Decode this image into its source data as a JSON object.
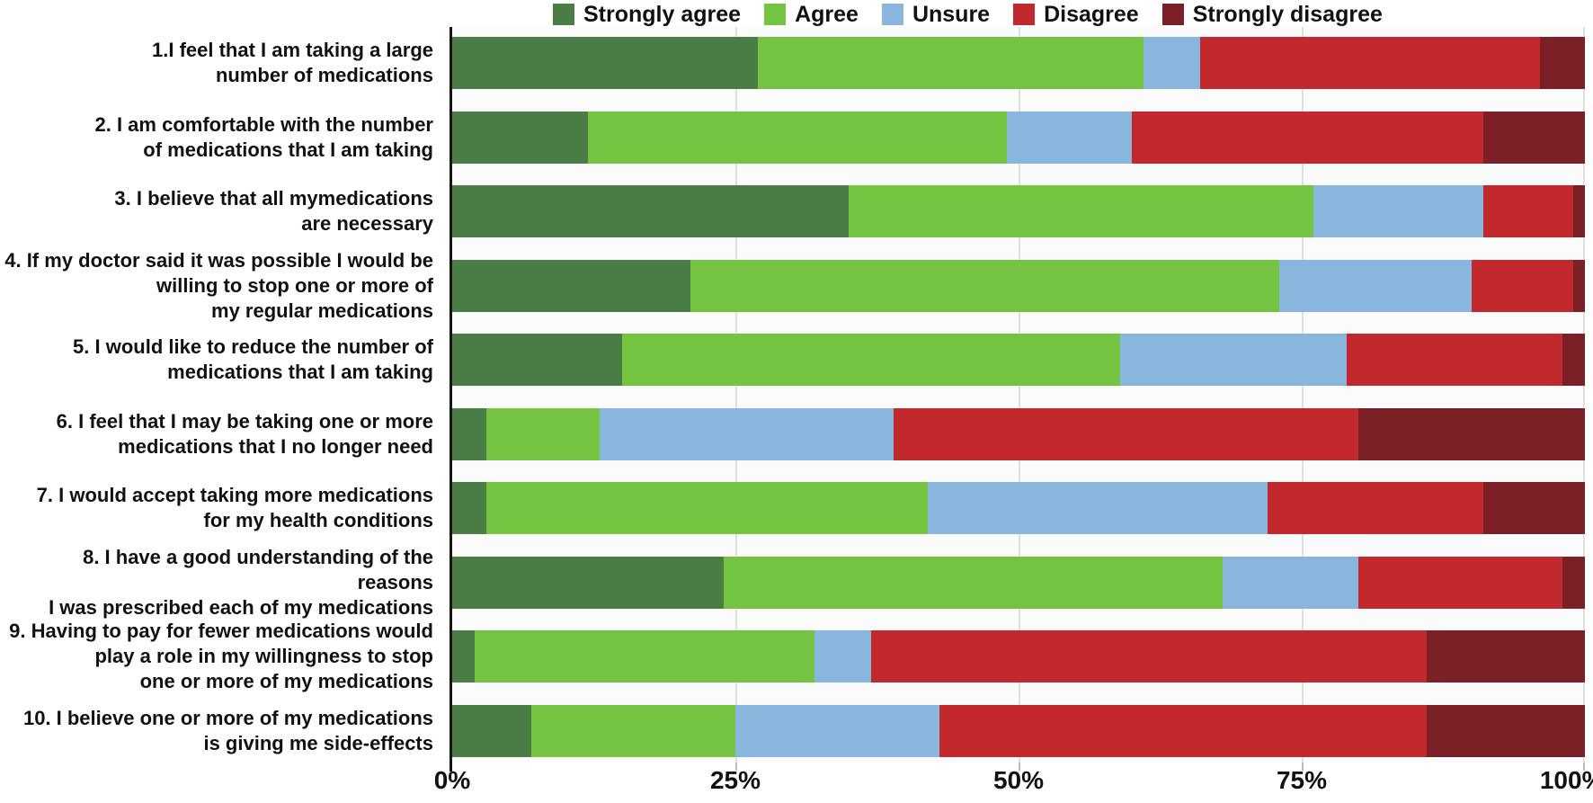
{
  "chart_data": {
    "type": "bar",
    "variant": "horizontal-stacked-100-percent",
    "title": "",
    "xlabel": "",
    "ylabel": "",
    "xlim": [
      0,
      100
    ],
    "x_ticks": [
      "0%",
      "25%",
      "50%",
      "75%",
      "100%"
    ],
    "x_tick_positions": [
      0,
      25,
      50,
      75,
      100
    ],
    "grid": "vertical light gridlines at 25%, 50%, 75%, 100%",
    "legend_position": "top-center",
    "categories": [
      "1.I feel that I am taking a large number of medications",
      "2. I am comfortable with the number of medications that I am taking",
      "3. I believe that all mymedications are necessary",
      "4. If my doctor said it was possible I would be willing to stop one or more of my regular medications",
      "5. I would like to reduce the number of medications that I am taking",
      "6. I feel that I may be taking one or more medications that I no longer need",
      "7. I would accept taking more medications for my health conditions",
      "8. I have a good understanding of the reasons I was prescribed each of my medications",
      "9. Having to pay for fewer medications would play a role in my willingness to stop one or more of my medications",
      "10. I believe one or more of my medications is giving me side-effects"
    ],
    "category_label_lines": [
      [
        "1.I feel that I am taking a large",
        "number of medications"
      ],
      [
        "2. I am comfortable with the number",
        "of medications that I am taking"
      ],
      [
        "3. I believe that all mymedications",
        "are necessary"
      ],
      [
        "4. If my doctor said it was possible I would be",
        "willing to stop one or more of",
        "my regular medications"
      ],
      [
        "5. I would like to reduce the number of",
        "medications that I am taking"
      ],
      [
        "6. I feel that I may be taking one or more",
        "medications that I no longer need"
      ],
      [
        "7. I would accept taking more medications",
        "for my health conditions"
      ],
      [
        "8. I have a good understanding of the reasons",
        "I was prescribed each of my medications"
      ],
      [
        "9. Having to pay for fewer medications would",
        "play a role in my willingness to stop",
        "one or more of my medications"
      ],
      [
        "10. I believe one or more of my medications",
        "is giving me side-effects"
      ]
    ],
    "series": [
      {
        "name": "Strongly agree",
        "color": "#4a7d45",
        "values": [
          27,
          12,
          35,
          21,
          15,
          3,
          3,
          24,
          2,
          7
        ]
      },
      {
        "name": "Agree",
        "color": "#74c341",
        "values": [
          34,
          37,
          41,
          52,
          44,
          10,
          39,
          44,
          30,
          18
        ]
      },
      {
        "name": "Unsure",
        "color": "#89b6dc",
        "values": [
          5,
          11,
          15,
          17,
          20,
          26,
          30,
          12,
          5,
          18
        ]
      },
      {
        "name": "Disagree",
        "color": "#c2292c",
        "values": [
          30,
          31,
          8,
          9,
          19,
          41,
          19,
          18,
          49,
          43
        ]
      },
      {
        "name": "Strongly disagree",
        "color": "#7b2026",
        "values": [
          4,
          9,
          1,
          1,
          2,
          20,
          9,
          2,
          14,
          14
        ]
      }
    ],
    "colors": {
      "strongly_agree": "#4a7d45",
      "agree": "#74c341",
      "unsure": "#89b6dc",
      "disagree": "#c2292c",
      "strongly_disagree": "#7b2026",
      "gridline": "#dde1dd",
      "axis": "#151515",
      "plot_background": "#fafbfa",
      "text": "#111111"
    }
  }
}
